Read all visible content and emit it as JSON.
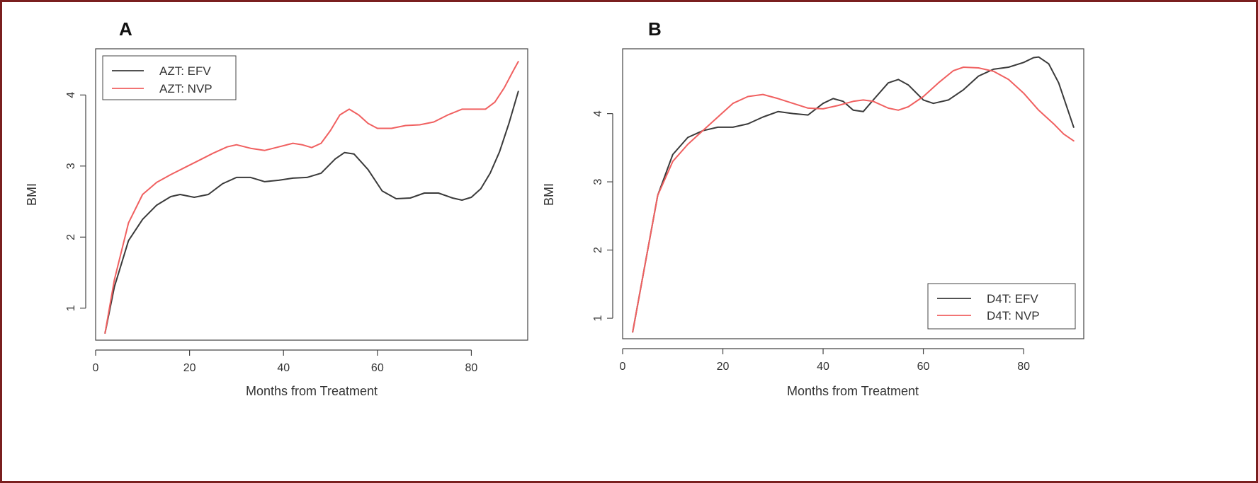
{
  "colors": {
    "frame": "#7a1f1f",
    "efv": "#3a3a3a",
    "nvp": "#f06060"
  },
  "chart_data": [
    {
      "type": "line",
      "panel_label": "A",
      "xlabel": "Months from Treatment",
      "ylabel": "BMI",
      "xlim": [
        0,
        92
      ],
      "ylim": [
        0.55,
        4.65
      ],
      "x_ticks": [
        0,
        20,
        40,
        60,
        80
      ],
      "y_ticks": [
        1,
        2,
        3,
        4
      ],
      "grid": false,
      "legend_position": "top-left",
      "series": [
        {
          "name": "AZT: EFV",
          "color": "#3a3a3a",
          "points": [
            [
              2,
              0.65
            ],
            [
              4,
              1.3
            ],
            [
              7,
              1.95
            ],
            [
              10,
              2.25
            ],
            [
              13,
              2.45
            ],
            [
              16,
              2.57
            ],
            [
              18,
              2.6
            ],
            [
              21,
              2.56
            ],
            [
              24,
              2.6
            ],
            [
              27,
              2.75
            ],
            [
              30,
              2.84
            ],
            [
              33,
              2.84
            ],
            [
              36,
              2.78
            ],
            [
              39,
              2.8
            ],
            [
              42,
              2.83
            ],
            [
              45,
              2.84
            ],
            [
              48,
              2.9
            ],
            [
              51,
              3.1
            ],
            [
              53,
              3.19
            ],
            [
              55,
              3.17
            ],
            [
              58,
              2.95
            ],
            [
              61,
              2.65
            ],
            [
              64,
              2.54
            ],
            [
              67,
              2.55
            ],
            [
              70,
              2.62
            ],
            [
              73,
              2.62
            ],
            [
              76,
              2.55
            ],
            [
              78,
              2.52
            ],
            [
              80,
              2.56
            ],
            [
              82,
              2.68
            ],
            [
              84,
              2.9
            ],
            [
              86,
              3.2
            ],
            [
              88,
              3.6
            ],
            [
              90,
              4.05
            ]
          ]
        },
        {
          "name": "AZT: NVP",
          "color": "#f06060",
          "points": [
            [
              2,
              0.65
            ],
            [
              4,
              1.4
            ],
            [
              7,
              2.2
            ],
            [
              10,
              2.6
            ],
            [
              13,
              2.77
            ],
            [
              16,
              2.88
            ],
            [
              19,
              2.98
            ],
            [
              22,
              3.08
            ],
            [
              25,
              3.18
            ],
            [
              28,
              3.27
            ],
            [
              30,
              3.3
            ],
            [
              33,
              3.25
            ],
            [
              36,
              3.22
            ],
            [
              39,
              3.27
            ],
            [
              42,
              3.32
            ],
            [
              44,
              3.3
            ],
            [
              46,
              3.26
            ],
            [
              48,
              3.32
            ],
            [
              50,
              3.5
            ],
            [
              52,
              3.72
            ],
            [
              54,
              3.8
            ],
            [
              56,
              3.72
            ],
            [
              58,
              3.6
            ],
            [
              60,
              3.53
            ],
            [
              63,
              3.53
            ],
            [
              66,
              3.57
            ],
            [
              69,
              3.58
            ],
            [
              72,
              3.62
            ],
            [
              75,
              3.72
            ],
            [
              78,
              3.8
            ],
            [
              81,
              3.8
            ],
            [
              83,
              3.8
            ],
            [
              85,
              3.9
            ],
            [
              87,
              4.1
            ],
            [
              89,
              4.35
            ],
            [
              90,
              4.47
            ]
          ]
        }
      ]
    },
    {
      "type": "line",
      "panel_label": "B",
      "xlabel": "Months from Treatment",
      "ylabel": "BMI",
      "xlim": [
        0,
        92
      ],
      "ylim": [
        0.7,
        4.95
      ],
      "x_ticks": [
        0,
        20,
        40,
        60,
        80
      ],
      "y_ticks": [
        1,
        2,
        3,
        4
      ],
      "grid": false,
      "legend_position": "bottom-right",
      "series": [
        {
          "name": "D4T: EFV",
          "color": "#3a3a3a",
          "points": [
            [
              2,
              0.8
            ],
            [
              4,
              1.6
            ],
            [
              7,
              2.8
            ],
            [
              10,
              3.4
            ],
            [
              13,
              3.65
            ],
            [
              16,
              3.75
            ],
            [
              19,
              3.8
            ],
            [
              22,
              3.8
            ],
            [
              25,
              3.85
            ],
            [
              28,
              3.95
            ],
            [
              31,
              4.03
            ],
            [
              34,
              4.0
            ],
            [
              37,
              3.98
            ],
            [
              40,
              4.15
            ],
            [
              42,
              4.22
            ],
            [
              44,
              4.18
            ],
            [
              46,
              4.05
            ],
            [
              48,
              4.03
            ],
            [
              50,
              4.2
            ],
            [
              53,
              4.45
            ],
            [
              55,
              4.5
            ],
            [
              57,
              4.42
            ],
            [
              60,
              4.2
            ],
            [
              62,
              4.15
            ],
            [
              65,
              4.2
            ],
            [
              68,
              4.35
            ],
            [
              71,
              4.55
            ],
            [
              74,
              4.65
            ],
            [
              77,
              4.68
            ],
            [
              80,
              4.75
            ],
            [
              82,
              4.82
            ],
            [
              83,
              4.83
            ],
            [
              85,
              4.73
            ],
            [
              87,
              4.45
            ],
            [
              90,
              3.8
            ]
          ]
        },
        {
          "name": "D4T: NVP",
          "color": "#f06060",
          "points": [
            [
              2,
              0.8
            ],
            [
              4,
              1.6
            ],
            [
              7,
              2.8
            ],
            [
              10,
              3.3
            ],
            [
              13,
              3.55
            ],
            [
              16,
              3.75
            ],
            [
              19,
              3.95
            ],
            [
              22,
              4.15
            ],
            [
              25,
              4.25
            ],
            [
              28,
              4.28
            ],
            [
              31,
              4.22
            ],
            [
              34,
              4.15
            ],
            [
              37,
              4.08
            ],
            [
              40,
              4.07
            ],
            [
              43,
              4.12
            ],
            [
              46,
              4.18
            ],
            [
              48,
              4.2
            ],
            [
              50,
              4.18
            ],
            [
              53,
              4.08
            ],
            [
              55,
              4.05
            ],
            [
              57,
              4.1
            ],
            [
              60,
              4.25
            ],
            [
              63,
              4.45
            ],
            [
              66,
              4.63
            ],
            [
              68,
              4.68
            ],
            [
              71,
              4.67
            ],
            [
              74,
              4.62
            ],
            [
              77,
              4.5
            ],
            [
              80,
              4.3
            ],
            [
              83,
              4.05
            ],
            [
              86,
              3.85
            ],
            [
              88,
              3.7
            ],
            [
              90,
              3.6
            ]
          ]
        }
      ]
    }
  ]
}
